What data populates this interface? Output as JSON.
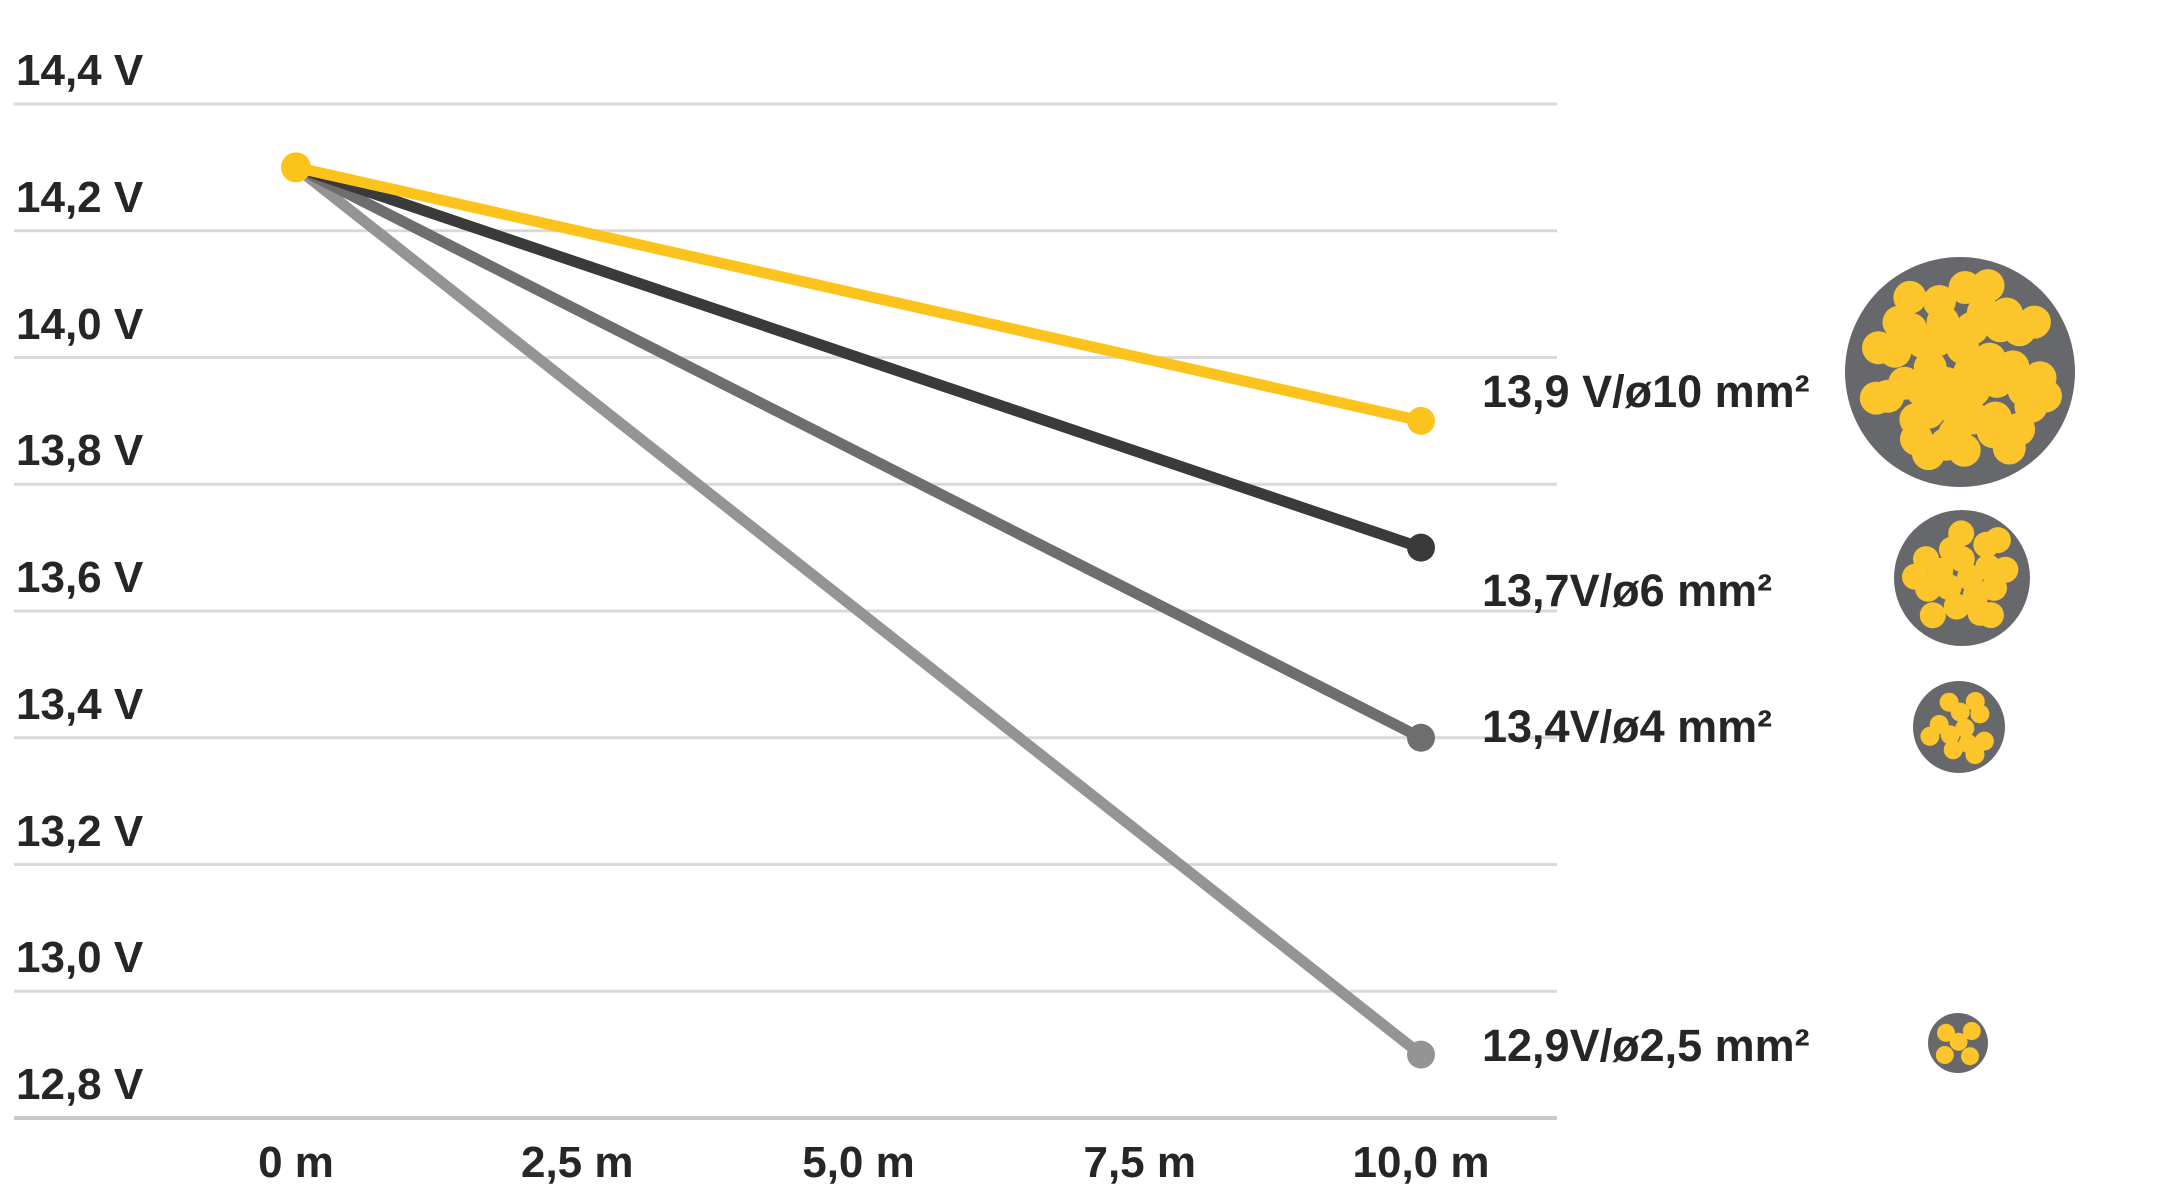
{
  "chart_data": {
    "type": "line",
    "title": "",
    "xlabel": "",
    "ylabel": "",
    "x_unit": "m",
    "y_unit": "V",
    "xlim": [
      0,
      10
    ],
    "ylim": [
      12.8,
      14.4
    ],
    "grid": "horizontal",
    "legend_position": "right-inline",
    "y_tick_values": [
      14.4,
      14.2,
      14.0,
      13.8,
      13.6,
      13.4,
      13.2,
      13.0,
      12.8
    ],
    "y_tick_labels": [
      "14,4 V",
      "14,2 V",
      "14,0 V",
      "13,8 V",
      "13,6 V",
      "13,4 V",
      "13,2 V",
      "13,0 V",
      "12,8 V"
    ],
    "x_tick_values": [
      0,
      2.5,
      5.0,
      7.5,
      10.0
    ],
    "x_tick_labels": [
      "0 m",
      "2,5 m",
      "5,0 m",
      "7,5 m",
      "10,0 m"
    ],
    "series": [
      {
        "name": "cable-10mm2",
        "label": "13,9 V/ø10 mm²",
        "color": "#FBC31C",
        "points": [
          {
            "x": 0,
            "y": 14.3
          },
          {
            "x": 10,
            "y": 13.9
          }
        ]
      },
      {
        "name": "cable-6mm2",
        "label": "13,7V/ø6 mm²",
        "color": "#3A3A3A",
        "points": [
          {
            "x": 0,
            "y": 14.3
          },
          {
            "x": 10,
            "y": 13.7
          }
        ]
      },
      {
        "name": "cable-4mm2",
        "label": "13,4V/ø4 mm²",
        "color": "#6E6E6E",
        "points": [
          {
            "x": 0,
            "y": 14.3
          },
          {
            "x": 10,
            "y": 13.4
          }
        ]
      },
      {
        "name": "cable-2_5mm2",
        "label": "12,9V/ø2,5 mm²",
        "color": "#949494",
        "points": [
          {
            "x": 0,
            "y": 14.3
          },
          {
            "x": 10,
            "y": 12.9
          }
        ]
      }
    ],
    "cable_illustrations": [
      {
        "cross_section": "ø10 mm²",
        "strands": 46
      },
      {
        "cross_section": "ø6 mm²",
        "strands": 19
      },
      {
        "cross_section": "ø4 mm²",
        "strands": 12
      },
      {
        "cross_section": "ø2,5 mm²",
        "strands": 5
      }
    ],
    "colors": {
      "text": "#262626",
      "gridline": "#D9D9D9",
      "bottom_gridline": "#C9C9C9",
      "cable_sheath": "#67686B",
      "cable_strand": "#FDC52C"
    }
  }
}
